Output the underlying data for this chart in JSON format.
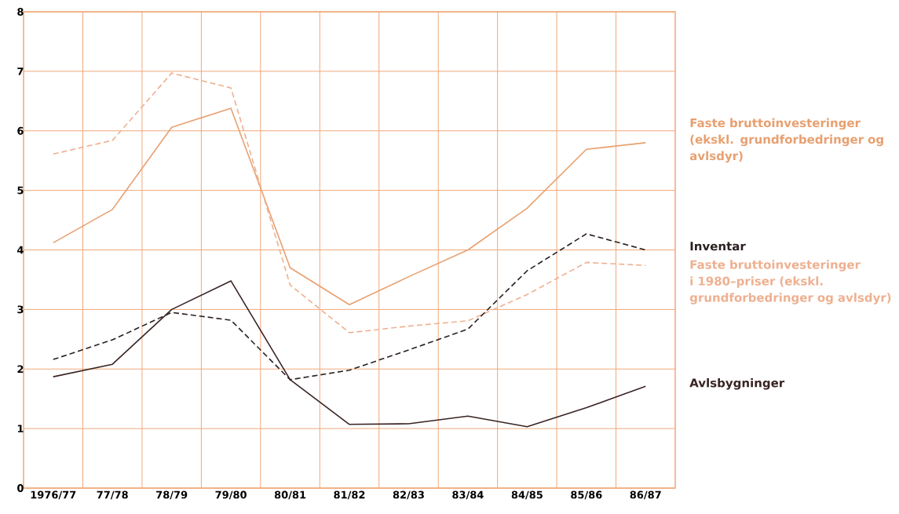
{
  "chart_data": {
    "type": "line",
    "categories": [
      "1976/77",
      "77/78",
      "78/79",
      "79/80",
      "80/81",
      "81/82",
      "82/83",
      "83/84",
      "84/85",
      "85/86",
      "86/87"
    ],
    "ylim": [
      0,
      8
    ],
    "yticks": [
      0,
      1,
      2,
      3,
      4,
      5,
      6,
      7,
      8
    ],
    "grid": true,
    "marker": "none",
    "series": [
      {
        "name": "Faste bruttoinvesteringer (ekskl. grundforbedringer og avlsdyr)",
        "color": "#e8a070",
        "line_style": "solid",
        "values": [
          4.12,
          4.68,
          6.06,
          6.38,
          3.7,
          3.08,
          3.55,
          4.0,
          4.7,
          5.69,
          5.8
        ]
      },
      {
        "name": "Faste bruttoinvesteringer i 1980–priser (ekskl. grundforbedringer og avlsdyr)",
        "color": "#eeb090",
        "line_style": "dashed",
        "values": [
          5.61,
          5.84,
          6.97,
          6.72,
          3.41,
          2.61,
          2.72,
          2.81,
          3.25,
          3.79,
          3.74
        ]
      },
      {
        "name": "Inventar",
        "color": "#2a2020",
        "line_style": "dashed",
        "values": [
          2.16,
          2.49,
          2.95,
          2.82,
          1.82,
          1.98,
          2.32,
          2.67,
          3.65,
          4.27,
          4.0
        ]
      },
      {
        "name": "Avlsbygninger",
        "color": "#3a2424",
        "line_style": "solid",
        "values": [
          1.87,
          2.08,
          3.0,
          3.48,
          1.82,
          1.07,
          1.08,
          1.21,
          1.03,
          1.35,
          1.71
        ]
      }
    ]
  }
}
